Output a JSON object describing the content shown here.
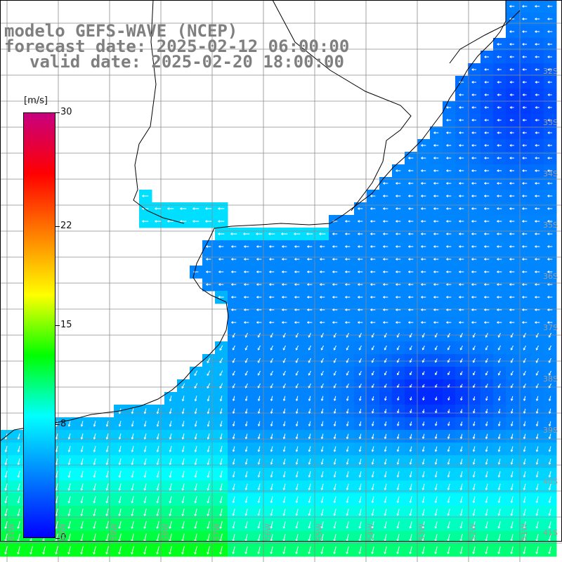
{
  "titles": {
    "model": "modelo GEFS-WAVE (NCEP)",
    "forecast": "forecast date: 2025-02-12 06:00:00",
    "valid": "valid date: 2025-02-20 18:00:00"
  },
  "colorbar": {
    "units": "[m/s]",
    "ticks": [
      {
        "value": 30,
        "label": "30"
      },
      {
        "value": 22,
        "label": "22"
      },
      {
        "value": 15,
        "label": "15"
      },
      {
        "value": 8,
        "label": "8"
      },
      {
        "value": 0,
        "label": "0"
      }
    ],
    "range": [
      0,
      30
    ],
    "colors": [
      "#0000ff",
      "#0080ff",
      "#00ffff",
      "#00ff00",
      "#ffff00",
      "#ff8000",
      "#ff0000",
      "#c80080"
    ]
  },
  "map": {
    "field": "wind speed",
    "units": "m/s",
    "lat_labels": [
      "32S",
      "33S",
      "34S",
      "35S",
      "36S",
      "37S",
      "38S",
      "39S",
      "40S",
      "41S"
    ],
    "lon_labels": [
      "61W",
      "60W",
      "59W",
      "58W",
      "57W",
      "56W",
      "55W",
      "54W",
      "53W",
      "52W",
      "51W"
    ],
    "colors": {
      "land": "#ffffff",
      "coast": "#000000",
      "grid": "#8c8c8c",
      "arrow": "#ffffff"
    }
  }
}
